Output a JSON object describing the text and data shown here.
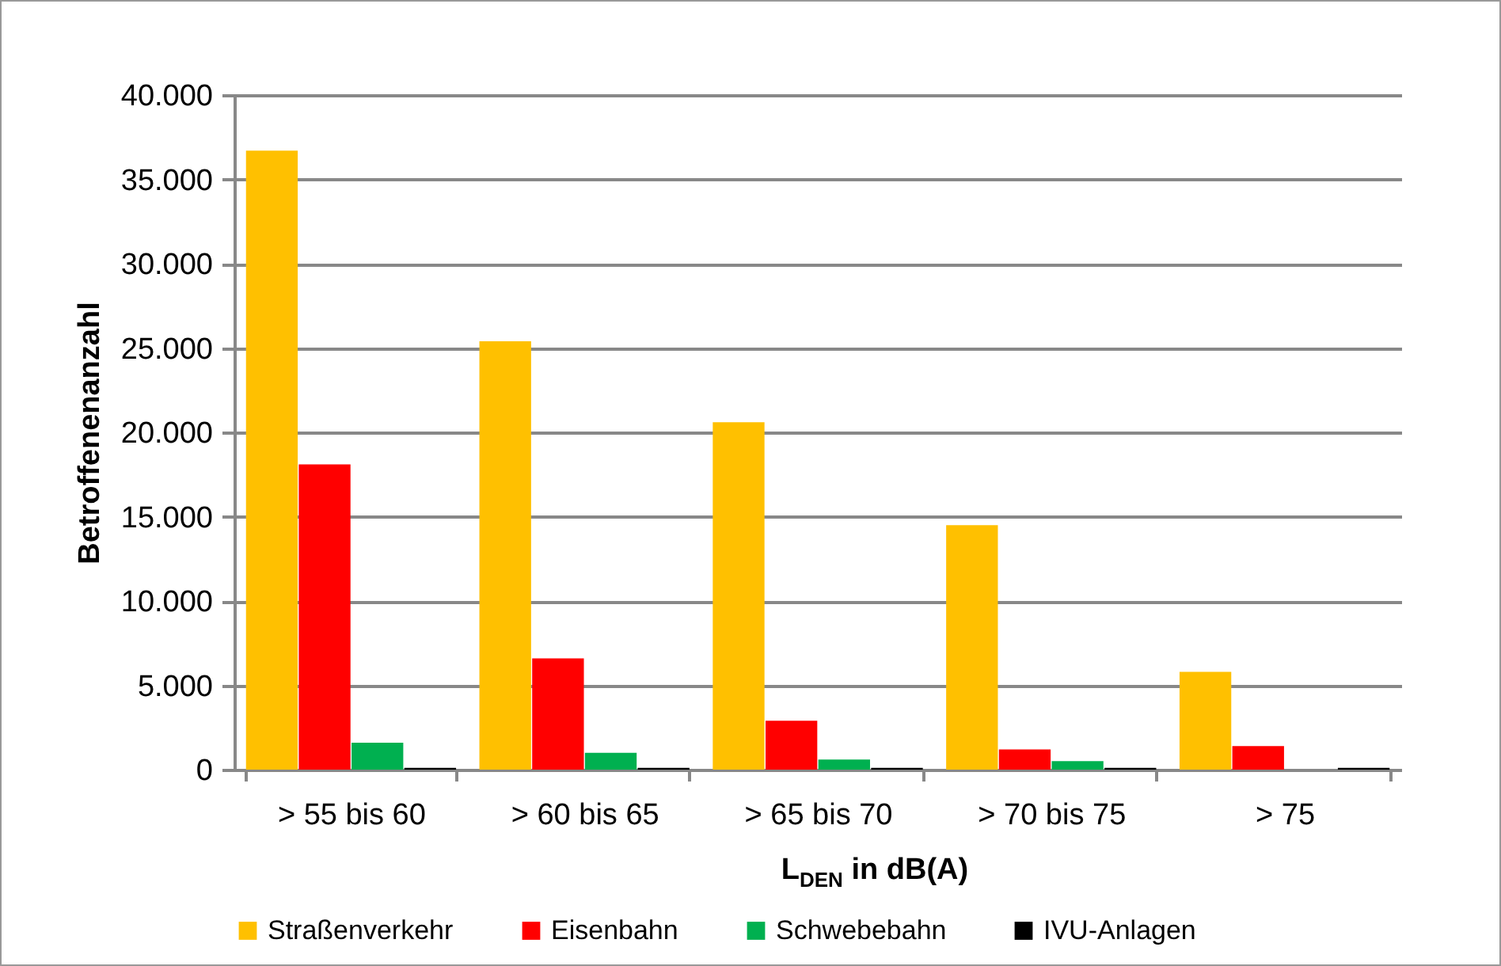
{
  "chart_data": {
    "type": "bar",
    "xlabel": "L$_{DEN}$ in dB(A)",
    "ylabel": "Betroffenenanzahl",
    "categories": [
      "> 55 bis 60",
      "> 60 bis 65",
      "> 65 bis 70",
      "> 70 bis 75",
      "> 75"
    ],
    "series": [
      {
        "name": "Straßenverkehr",
        "color": "#ffc000",
        "values": [
          36700,
          25400,
          20600,
          14500,
          5800
        ]
      },
      {
        "name": "Eisenbahn",
        "color": "#ff0000",
        "values": [
          18100,
          6600,
          2900,
          1200,
          1400
        ]
      },
      {
        "name": "Schwebebahn",
        "color": "#00b050",
        "values": [
          1600,
          1000,
          600,
          500,
          null
        ]
      },
      {
        "name": "IVU-Anlagen",
        "color": "#000000",
        "values": [
          100,
          100,
          100,
          100,
          100
        ]
      }
    ],
    "ylim": [
      0,
      40000
    ],
    "yticks": [
      {
        "value": 0,
        "label": "0"
      },
      {
        "value": 5000,
        "label": "5.000"
      },
      {
        "value": 10000,
        "label": "10.000"
      },
      {
        "value": 15000,
        "label": "15.000"
      },
      {
        "value": 20000,
        "label": "20.000"
      },
      {
        "value": 25000,
        "label": "25.000"
      },
      {
        "value": 30000,
        "label": "30.000"
      },
      {
        "value": 35000,
        "label": "35.000"
      },
      {
        "value": 40000,
        "label": "40.000"
      }
    ],
    "grid": "y",
    "legend": "bottom"
  }
}
